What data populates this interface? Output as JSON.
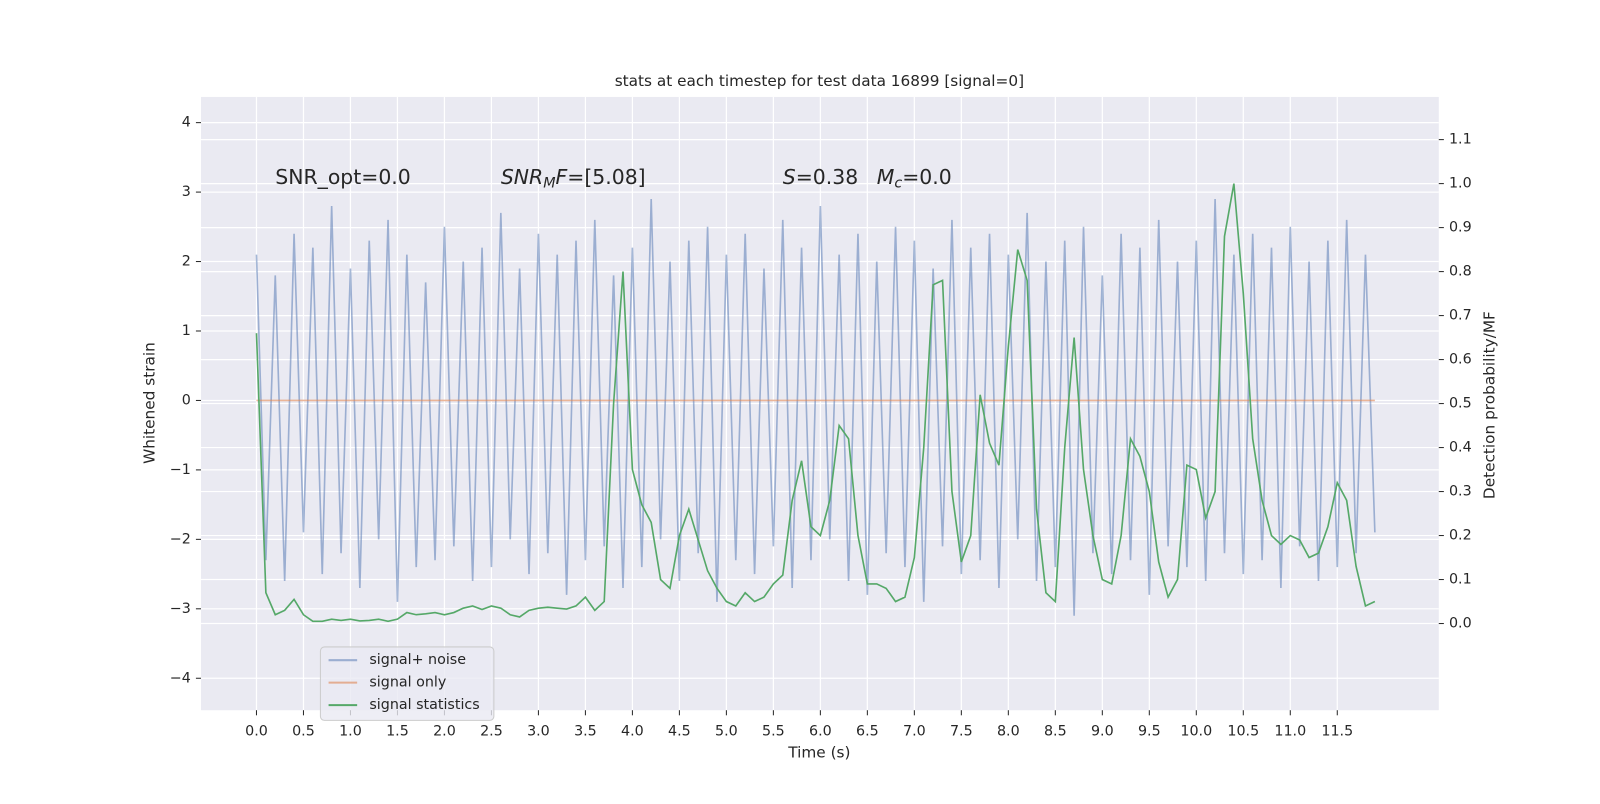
{
  "chart_data": {
    "type": "line",
    "title": "stats at each timestep for test data 16899 [signal=0]",
    "x_label": "Time (s)",
    "y_label": "Whitened strain",
    "y2_label": "Detection probability/MF",
    "annotations": [
      {
        "x": 0.2,
        "y": 3.2,
        "parts": [
          {
            "text": "SNR_opt=0.0"
          }
        ]
      },
      {
        "x": 2.6,
        "y": 3.2,
        "parts": [
          {
            "text": "SNR",
            "italic": true
          },
          {
            "text": "M",
            "italic": true,
            "sub": true
          },
          {
            "text": "F",
            "italic": true
          },
          {
            "text": "=[5.08]"
          }
        ]
      },
      {
        "x": 5.6,
        "y": 3.2,
        "parts": [
          {
            "text": "S",
            "italic": true
          },
          {
            "text": "=0.38"
          }
        ]
      },
      {
        "x": 6.6,
        "y": 3.2,
        "parts": [
          {
            "text": "M",
            "italic": true
          },
          {
            "text": "c",
            "italic": true,
            "sub": true
          },
          {
            "text": "=0.0"
          }
        ]
      }
    ],
    "x": [
      0,
      0.1,
      0.2,
      0.3,
      0.4,
      0.5,
      0.6,
      0.7,
      0.8,
      0.9,
      1,
      1.1,
      1.2,
      1.3,
      1.4,
      1.5,
      1.6,
      1.7,
      1.8,
      1.9,
      2,
      2.1,
      2.2,
      2.3,
      2.4,
      2.5,
      2.6,
      2.7,
      2.8,
      2.9,
      3,
      3.1,
      3.2,
      3.3,
      3.4,
      3.5,
      3.6,
      3.7,
      3.8,
      3.9,
      4,
      4.1,
      4.2,
      4.3,
      4.4,
      4.5,
      4.6,
      4.7,
      4.8,
      4.9,
      5,
      5.1,
      5.2,
      5.3,
      5.4,
      5.5,
      5.6,
      5.7,
      5.8,
      5.9,
      6,
      6.1,
      6.2,
      6.3,
      6.4,
      6.5,
      6.6,
      6.7,
      6.8,
      6.9,
      7,
      7.1,
      7.2,
      7.3,
      7.4,
      7.5,
      7.6,
      7.7,
      7.8,
      7.9,
      8,
      8.1,
      8.2,
      8.3,
      8.4,
      8.5,
      8.6,
      8.7,
      8.8,
      8.9,
      9,
      9.1,
      9.2,
      9.3,
      9.4,
      9.5,
      9.6,
      9.7,
      9.8,
      9.9,
      10,
      10.1,
      10.2,
      10.3,
      10.4,
      10.5,
      10.6,
      10.7,
      10.8,
      10.9,
      11,
      11.1,
      11.2,
      11.3,
      11.4,
      11.5,
      11.6,
      11.7,
      11.8,
      11.9
    ],
    "series": [
      {
        "name": "signal+ noise",
        "color": "#4c72b0",
        "opacity": 0.5,
        "values": [
          2.1,
          -2.3,
          1.8,
          -2.6,
          2.4,
          -1.9,
          2.2,
          -2.5,
          2.8,
          -2.2,
          1.9,
          -2.7,
          2.3,
          -2.0,
          2.6,
          -2.9,
          2.1,
          -2.4,
          1.7,
          -2.3,
          2.5,
          -2.1,
          2.0,
          -2.6,
          2.2,
          -2.4,
          2.7,
          -2.0,
          1.9,
          -2.5,
          2.4,
          -2.2,
          2.1,
          -2.8,
          2.3,
          -2.3,
          2.6,
          -2.1,
          1.8,
          -2.7,
          2.2,
          -2.4,
          2.9,
          -2.0,
          2.0,
          -2.6,
          2.3,
          -2.2,
          2.5,
          -2.9,
          2.1,
          -2.3,
          2.4,
          -2.5,
          1.9,
          -2.1,
          2.6,
          -2.7,
          2.2,
          -2.3,
          2.8,
          -2.0,
          2.1,
          -2.6,
          2.4,
          -2.8,
          2.0,
          -2.2,
          2.5,
          -2.4,
          2.3,
          -2.9,
          1.9,
          -2.1,
          2.6,
          -2.5,
          2.2,
          -2.3,
          2.4,
          -2.7,
          2.1,
          -2.0,
          2.7,
          -2.6,
          2.0,
          -2.4,
          2.3,
          -3.1,
          2.5,
          -2.2,
          1.8,
          -2.5,
          2.4,
          -2.3,
          2.2,
          -2.8,
          2.6,
          -2.1,
          2.0,
          -2.4,
          2.3,
          -2.6,
          2.9,
          -2.2,
          2.1,
          -2.5,
          2.4,
          -2.3,
          2.2,
          -2.7,
          2.5,
          -2.1,
          2.0,
          -2.6,
          2.3,
          -2.4,
          2.6,
          -2.2,
          2.1,
          -1.9
        ]
      },
      {
        "name": "signal only",
        "color": "#dd8452",
        "opacity": 0.6,
        "values": [
          0,
          0,
          0,
          0,
          0,
          0,
          0,
          0,
          0,
          0,
          0,
          0,
          0,
          0,
          0,
          0,
          0,
          0,
          0,
          0,
          0,
          0,
          0,
          0,
          0,
          0,
          0,
          0,
          0,
          0,
          0,
          0,
          0,
          0,
          0,
          0,
          0,
          0,
          0,
          0,
          0,
          0,
          0,
          0,
          0,
          0,
          0,
          0,
          0,
          0,
          0,
          0,
          0,
          0,
          0,
          0,
          0,
          0,
          0,
          0,
          0,
          0,
          0,
          0,
          0,
          0,
          0,
          0,
          0,
          0,
          0,
          0,
          0,
          0,
          0,
          0,
          0,
          0,
          0,
          0,
          0,
          0,
          0,
          0,
          0,
          0,
          0,
          0,
          0,
          0,
          0,
          0,
          0,
          0,
          0,
          0,
          0,
          0,
          0,
          0,
          0,
          0,
          0,
          0,
          0,
          0,
          0,
          0,
          0,
          0,
          0,
          0,
          0,
          0,
          0,
          0,
          0,
          0,
          0,
          0
        ]
      },
      {
        "name": "signal statistics",
        "color": "#55a868",
        "opacity": 1,
        "axis": "y2",
        "values": [
          0.66,
          0.07,
          0.02,
          0.03,
          0.055,
          0.02,
          0.005,
          0.005,
          0.01,
          0.007,
          0.01,
          0.006,
          0.007,
          0.01,
          0.005,
          0.01,
          0.025,
          0.02,
          0.022,
          0.025,
          0.02,
          0.025,
          0.035,
          0.04,
          0.032,
          0.04,
          0.035,
          0.02,
          0.015,
          0.03,
          0.035,
          0.037,
          0.035,
          0.033,
          0.04,
          0.06,
          0.03,
          0.05,
          0.5,
          0.8,
          0.35,
          0.27,
          0.23,
          0.1,
          0.08,
          0.2,
          0.26,
          0.19,
          0.12,
          0.08,
          0.05,
          0.04,
          0.07,
          0.05,
          0.06,
          0.09,
          0.11,
          0.28,
          0.37,
          0.22,
          0.2,
          0.28,
          0.45,
          0.42,
          0.2,
          0.09,
          0.09,
          0.08,
          0.05,
          0.06,
          0.15,
          0.4,
          0.77,
          0.78,
          0.3,
          0.14,
          0.2,
          0.52,
          0.41,
          0.36,
          0.63,
          0.85,
          0.78,
          0.26,
          0.07,
          0.05,
          0.4,
          0.65,
          0.35,
          0.2,
          0.1,
          0.09,
          0.2,
          0.42,
          0.38,
          0.3,
          0.14,
          0.06,
          0.1,
          0.36,
          0.35,
          0.24,
          0.3,
          0.88,
          1.0,
          0.75,
          0.42,
          0.28,
          0.2,
          0.18,
          0.2,
          0.19,
          0.15,
          0.16,
          0.22,
          0.32,
          0.28,
          0.13,
          0.04,
          0.05
        ]
      }
    ],
    "xlim": [
      -0.59,
      12.58
    ],
    "ylim": [
      -4.46,
      4.37
    ],
    "y2lim": [
      -0.197,
      1.197
    ],
    "xticks": [
      {
        "value": 0,
        "label": "0.0"
      },
      0.5,
      {
        "value": 1,
        "label": "1.0"
      },
      1.5,
      {
        "value": 2,
        "label": "2.0"
      },
      2.5,
      {
        "value": 3,
        "label": "3.0"
      },
      3.5,
      {
        "value": 4,
        "label": "4.0"
      },
      4.5,
      {
        "value": 5,
        "label": "5.0"
      },
      5.5,
      {
        "value": 6,
        "label": "6.0"
      },
      6.5,
      {
        "value": 7,
        "label": "7.0"
      },
      7.5,
      {
        "value": 8,
        "label": "8.0"
      },
      8.5,
      {
        "value": 9,
        "label": "9.0"
      },
      9.5,
      {
        "value": 10,
        "label": "10.0"
      },
      10.5,
      {
        "value": 11,
        "label": "11.0"
      },
      11.5
    ],
    "yticks": [
      {
        "value": -4,
        "label": "−4"
      },
      {
        "value": -3,
        "label": "−3"
      },
      {
        "value": -2,
        "label": "−2"
      },
      {
        "value": -1,
        "label": "−1"
      },
      0,
      1,
      2,
      3,
      4
    ],
    "y2ticks": [
      {
        "value": 0,
        "label": "0.0"
      },
      0.1,
      0.2,
      0.3,
      0.4,
      0.5,
      0.6,
      0.7,
      0.8,
      0.9,
      {
        "value": 1,
        "label": "1.0"
      },
      1.1
    ],
    "grid": true,
    "legend": "lower left",
    "background": "#eaeaf2"
  }
}
